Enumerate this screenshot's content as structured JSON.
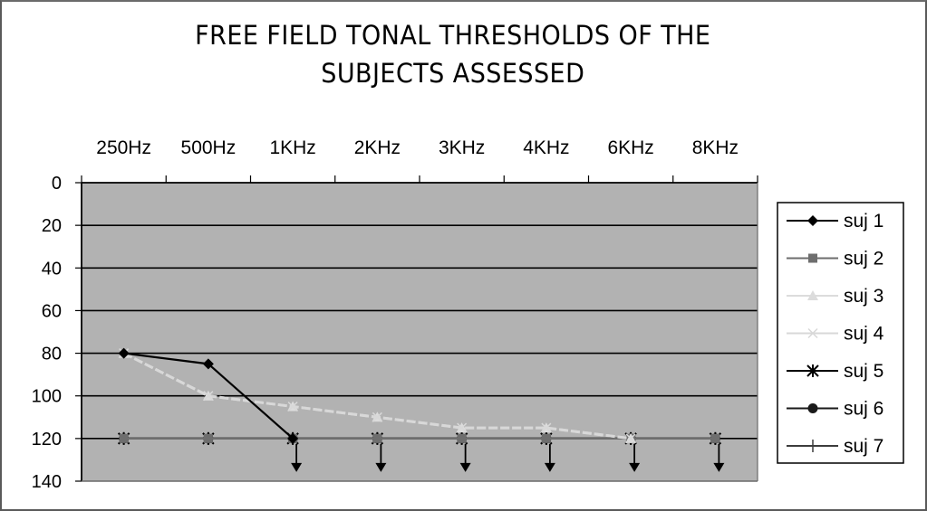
{
  "chart_data": {
    "type": "line",
    "title": "FREE FIELD TONAL THRESHOLDS OF THE SUBJECTS ASSESSED",
    "title_lines": [
      "FREE FIELD TONAL THRESHOLDS OF THE",
      "SUBJECTS ASSESSED"
    ],
    "xlabel": "",
    "ylabel": "",
    "categories": [
      "250Hz",
      "500Hz",
      "1KHz",
      "2KHz",
      "3KHz",
      "4KHz",
      "6KHz",
      "8KHz"
    ],
    "y_ticks": [
      0,
      20,
      40,
      60,
      80,
      100,
      120,
      140
    ],
    "ylim": [
      0,
      140
    ],
    "y_inverted": true,
    "x_axis_position": "top",
    "grid": {
      "horizontal": true,
      "vertical": false
    },
    "plot_background": "#b2b2b2",
    "legend_position": "right",
    "series": [
      {
        "name": "suj 1",
        "marker": "diamond",
        "color": "#000000",
        "values": [
          80,
          85,
          120,
          null,
          null,
          null,
          null,
          null
        ]
      },
      {
        "name": "suj 2",
        "marker": "square",
        "color": "#6e6e6e",
        "values": [
          120,
          120,
          120,
          120,
          120,
          120,
          120,
          120
        ]
      },
      {
        "name": "suj 3",
        "marker": "triangle",
        "color": "#dcdcdc",
        "values": [
          80,
          100,
          105,
          110,
          115,
          115,
          120,
          null
        ]
      },
      {
        "name": "suj 4",
        "marker": "x",
        "color": "#d8d8d8",
        "values": [
          80,
          100,
          105,
          110,
          115,
          115,
          120,
          null
        ]
      },
      {
        "name": "suj 5",
        "marker": "asterisk",
        "color": "#000000",
        "values": [
          120,
          120,
          120,
          120,
          120,
          120,
          120,
          120
        ]
      },
      {
        "name": "suj 6",
        "marker": "circle",
        "color": "#1a1a1a",
        "values": [
          120,
          120,
          120,
          120,
          120,
          120,
          120,
          120
        ]
      },
      {
        "name": "suj 7",
        "marker": "plus",
        "color": "#3c3c3c",
        "values": [
          120,
          120,
          120,
          120,
          120,
          120,
          120,
          120
        ]
      }
    ],
    "annotations": [
      {
        "type": "no-response-arrow",
        "direction": "down",
        "at_y": 120,
        "categories": [
          "1KHz",
          "2KHz",
          "3KHz",
          "4KHz",
          "6KHz",
          "8KHz"
        ]
      }
    ]
  }
}
